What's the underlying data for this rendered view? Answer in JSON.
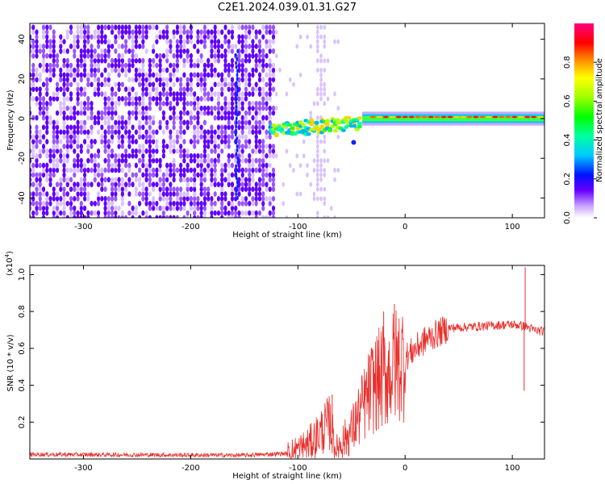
{
  "title": "C2E1.2024.039.01.31.G27",
  "chart_data": [
    {
      "type": "heatmap",
      "xlabel": "Height of straight line (km)",
      "ylabel": "Frequency (Hz)",
      "xlim": [
        -350,
        130
      ],
      "ylim": [
        -50,
        48
      ],
      "x_ticks": [
        -300,
        -200,
        -100,
        0,
        100
      ],
      "y_ticks": [
        -40,
        -20,
        0,
        20,
        40
      ],
      "colorbar": {
        "label": "Normalized spectral amplitude",
        "range": [
          0,
          1
        ],
        "ticks": [
          "0.0",
          "0.2",
          "0.4",
          "0.6",
          "0.8"
        ]
      },
      "regions": [
        {
          "x": [
            -350,
            -120
          ],
          "freq": [
            -50,
            48
          ],
          "level": 0.15,
          "note": "broadband purple noise"
        },
        {
          "x": [
            -160,
            -155
          ],
          "freq": [
            -40,
            35
          ],
          "level": 0.2
        },
        {
          "x": [
            -80,
            -75
          ],
          "freq": [
            -50,
            48
          ],
          "level": 0.05
        },
        {
          "x": [
            -120,
            -40
          ],
          "freq": [
            -10,
            5
          ],
          "level": 0.55
        },
        {
          "x": [
            -40,
            130
          ],
          "freq": [
            -2,
            2
          ],
          "level": 0.85
        }
      ]
    },
    {
      "type": "line",
      "xlabel": "Height of straight line (km)",
      "ylabel": "SNR (10 * v/v)",
      "multiplier": "(x10",
      "multiplier_exp": "4",
      "xlim": [
        -350,
        130
      ],
      "ylim": [
        0,
        1.05
      ],
      "x_ticks": [
        -300,
        -200,
        -100,
        0,
        100
      ],
      "y_ticks": [
        0.2,
        0.4,
        0.6,
        0.8,
        1.0
      ],
      "color": "#e8302c",
      "series_trend": [
        {
          "x": -350,
          "y": 0.025
        },
        {
          "x": -150,
          "y": 0.02
        },
        {
          "x": -110,
          "y": 0.03
        },
        {
          "x": -90,
          "y": 0.08
        },
        {
          "x": -70,
          "y": 0.2
        },
        {
          "x": -65,
          "y": 0.05
        },
        {
          "x": -50,
          "y": 0.15
        },
        {
          "x": -30,
          "y": 0.4
        },
        {
          "x": 0,
          "y": 0.55
        },
        {
          "x": 20,
          "y": 0.65
        },
        {
          "x": 40,
          "y": 0.71
        },
        {
          "x": 100,
          "y": 0.73
        },
        {
          "x": 112,
          "y": 0.72
        },
        {
          "x": 120,
          "y": 0.7
        },
        {
          "x": 130,
          "y": 0.69
        }
      ],
      "spikes": [
        {
          "x": -68,
          "y": 0.35
        },
        {
          "x": -10,
          "y": 0.84
        },
        {
          "x": -20,
          "y": 0.8
        },
        {
          "x": 112,
          "y": 1.04
        },
        {
          "x": 111,
          "y": 0.37
        }
      ]
    }
  ]
}
